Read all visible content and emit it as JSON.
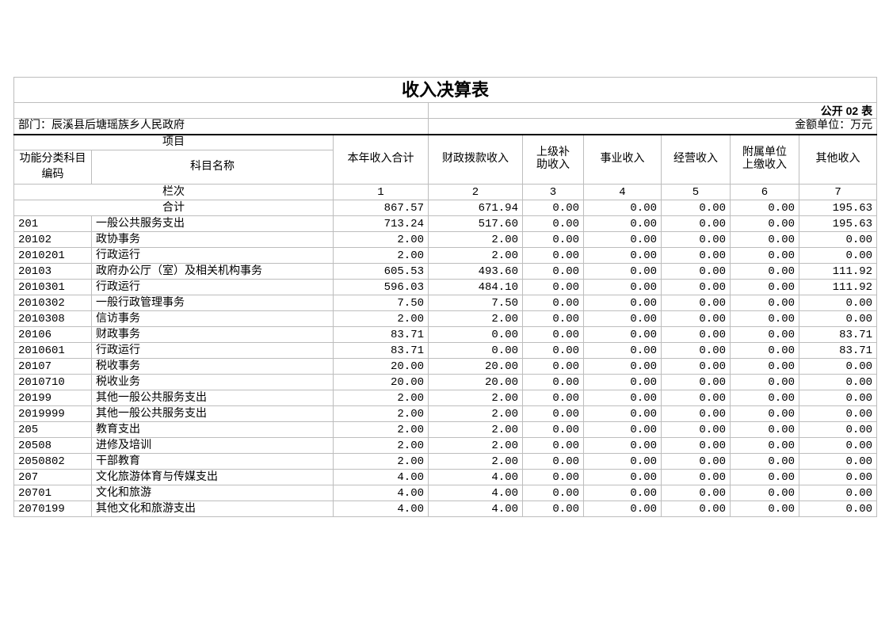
{
  "title": "收入决算表",
  "form_no": "公开 02 表",
  "department": "部门：辰溪县后塘瑶族乡人民政府",
  "unit": "金额单位：万元",
  "headers": {
    "item": "项目",
    "code": "功能分类科目编码",
    "name": "科目名称",
    "columns": [
      "本年收入合计",
      "财政拨款收入",
      "上级补助收入",
      "事业收入",
      "经营收入",
      "附属单位上缴收入",
      "其他收入"
    ],
    "row_index_label": "栏次",
    "column_numbers": [
      "1",
      "2",
      "3",
      "4",
      "5",
      "6",
      "7"
    ]
  },
  "total": {
    "label": "合计",
    "values": [
      "867.57",
      "671.94",
      "0.00",
      "0.00",
      "0.00",
      "0.00",
      "195.63"
    ]
  },
  "rows": [
    {
      "code": "201",
      "name": "一般公共服务支出",
      "values": [
        "713.24",
        "517.60",
        "0.00",
        "0.00",
        "0.00",
        "0.00",
        "195.63"
      ]
    },
    {
      "code": "20102",
      "name": "政协事务",
      "values": [
        "2.00",
        "2.00",
        "0.00",
        "0.00",
        "0.00",
        "0.00",
        "0.00"
      ]
    },
    {
      "code": "2010201",
      "name": "行政运行",
      "values": [
        "2.00",
        "2.00",
        "0.00",
        "0.00",
        "0.00",
        "0.00",
        "0.00"
      ]
    },
    {
      "code": "20103",
      "name": "政府办公厅（室）及相关机构事务",
      "values": [
        "605.53",
        "493.60",
        "0.00",
        "0.00",
        "0.00",
        "0.00",
        "111.92"
      ]
    },
    {
      "code": "2010301",
      "name": "行政运行",
      "values": [
        "596.03",
        "484.10",
        "0.00",
        "0.00",
        "0.00",
        "0.00",
        "111.92"
      ]
    },
    {
      "code": "2010302",
      "name": "一般行政管理事务",
      "values": [
        "7.50",
        "7.50",
        "0.00",
        "0.00",
        "0.00",
        "0.00",
        "0.00"
      ]
    },
    {
      "code": "2010308",
      "name": "信访事务",
      "values": [
        "2.00",
        "2.00",
        "0.00",
        "0.00",
        "0.00",
        "0.00",
        "0.00"
      ]
    },
    {
      "code": "20106",
      "name": "财政事务",
      "values": [
        "83.71",
        "0.00",
        "0.00",
        "0.00",
        "0.00",
        "0.00",
        "83.71"
      ]
    },
    {
      "code": "2010601",
      "name": "行政运行",
      "values": [
        "83.71",
        "0.00",
        "0.00",
        "0.00",
        "0.00",
        "0.00",
        "83.71"
      ]
    },
    {
      "code": "20107",
      "name": "税收事务",
      "values": [
        "20.00",
        "20.00",
        "0.00",
        "0.00",
        "0.00",
        "0.00",
        "0.00"
      ]
    },
    {
      "code": "2010710",
      "name": "税收业务",
      "values": [
        "20.00",
        "20.00",
        "0.00",
        "0.00",
        "0.00",
        "0.00",
        "0.00"
      ]
    },
    {
      "code": "20199",
      "name": "其他一般公共服务支出",
      "values": [
        "2.00",
        "2.00",
        "0.00",
        "0.00",
        "0.00",
        "0.00",
        "0.00"
      ]
    },
    {
      "code": "2019999",
      "name": "其他一般公共服务支出",
      "values": [
        "2.00",
        "2.00",
        "0.00",
        "0.00",
        "0.00",
        "0.00",
        "0.00"
      ]
    },
    {
      "code": "205",
      "name": "教育支出",
      "values": [
        "2.00",
        "2.00",
        "0.00",
        "0.00",
        "0.00",
        "0.00",
        "0.00"
      ]
    },
    {
      "code": "20508",
      "name": "进修及培训",
      "values": [
        "2.00",
        "2.00",
        "0.00",
        "0.00",
        "0.00",
        "0.00",
        "0.00"
      ]
    },
    {
      "code": "2050802",
      "name": "干部教育",
      "values": [
        "2.00",
        "2.00",
        "0.00",
        "0.00",
        "0.00",
        "0.00",
        "0.00"
      ]
    },
    {
      "code": "207",
      "name": "文化旅游体育与传媒支出",
      "values": [
        "4.00",
        "4.00",
        "0.00",
        "0.00",
        "0.00",
        "0.00",
        "0.00"
      ]
    },
    {
      "code": "20701",
      "name": "文化和旅游",
      "values": [
        "4.00",
        "4.00",
        "0.00",
        "0.00",
        "0.00",
        "0.00",
        "0.00"
      ]
    },
    {
      "code": "2070199",
      "name": "其他文化和旅游支出",
      "values": [
        "4.00",
        "4.00",
        "0.00",
        "0.00",
        "0.00",
        "0.00",
        "0.00"
      ]
    }
  ]
}
